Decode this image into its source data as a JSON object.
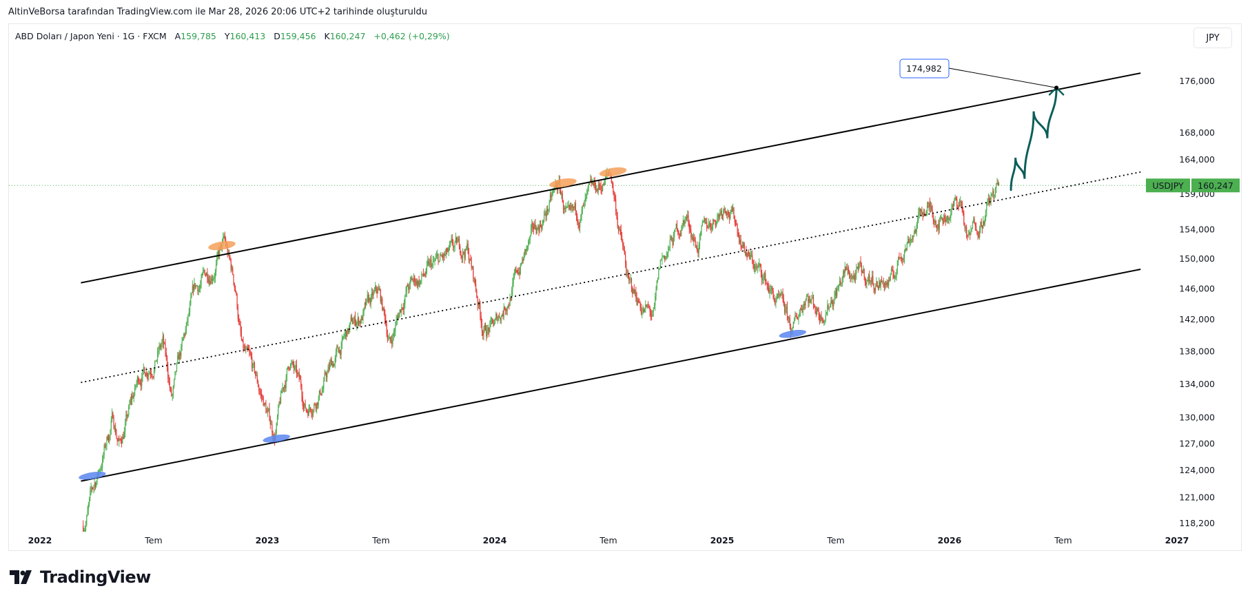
{
  "caption": "AltinVeBorsa tarafından TradingView.com ile Mar 28, 2026 20:06 UTC+2 tarihinde oluşturuldu",
  "legend": {
    "symbol": "ABD Doları / Japon Yeni · 1G · FXCM",
    "open_label": "A",
    "open": "159,785",
    "high_label": "Y",
    "high": "160,413",
    "low_label": "D",
    "low": "159,456",
    "close_label": "K",
    "close": "160,247",
    "change": "+0,462 (+0,29%)"
  },
  "currency_button": "JPY",
  "logo_text": "TradingView",
  "colors": {
    "up": "#4caf50",
    "down": "#e53935",
    "accent": "#4caf50",
    "arrow": "#0b5e5a",
    "top_marker": "#f5a05a",
    "bottom_marker": "#5b86f0"
  },
  "chart_data": {
    "type": "candlestick",
    "title": "USDJPY",
    "scale": "log",
    "ylim": [
      117.5,
      181
    ],
    "xlim": [
      2021.86,
      2027.1
    ],
    "last_price": {
      "symbol": "USDJPY",
      "value": 160.247,
      "label": "160,247"
    },
    "y_ticks": [
      {
        "value": 176,
        "label": "176,000"
      },
      {
        "value": 168,
        "label": "168,000"
      },
      {
        "value": 164,
        "label": "164,000"
      },
      {
        "value": 159,
        "label": "159,000"
      },
      {
        "value": 154,
        "label": "154,000"
      },
      {
        "value": 150,
        "label": "150,000"
      },
      {
        "value": 146,
        "label": "146,000"
      },
      {
        "value": 142,
        "label": "142,000"
      },
      {
        "value": 138,
        "label": "138,000"
      },
      {
        "value": 134,
        "label": "134,000"
      },
      {
        "value": 130,
        "label": "130,000"
      },
      {
        "value": 127,
        "label": "127,000"
      },
      {
        "value": 124,
        "label": "124,000"
      },
      {
        "value": 121,
        "label": "121,000"
      },
      {
        "value": 118.2,
        "label": "118,200"
      }
    ],
    "x_ticks": [
      {
        "t": 2022.0,
        "label": "2022",
        "year": true
      },
      {
        "t": 2022.5,
        "label": "Tem"
      },
      {
        "t": 2023.0,
        "label": "2023",
        "year": true
      },
      {
        "t": 2023.5,
        "label": "Tem"
      },
      {
        "t": 2024.0,
        "label": "2024",
        "year": true
      },
      {
        "t": 2024.5,
        "label": "Tem"
      },
      {
        "t": 2025.0,
        "label": "2025",
        "year": true
      },
      {
        "t": 2025.5,
        "label": "Tem"
      },
      {
        "t": 2026.0,
        "label": "2026",
        "year": true
      },
      {
        "t": 2026.5,
        "label": "Tem"
      },
      {
        "t": 2027.0,
        "label": "2027",
        "year": true
      }
    ],
    "price_path": [
      [
        2022.19,
        118
      ],
      [
        2022.26,
        124
      ],
      [
        2022.32,
        130
      ],
      [
        2022.35,
        127
      ],
      [
        2022.44,
        135
      ],
      [
        2022.54,
        139
      ],
      [
        2022.58,
        132
      ],
      [
        2022.68,
        145
      ],
      [
        2022.81,
        151.9
      ],
      [
        2022.86,
        146
      ],
      [
        2022.89,
        138
      ],
      [
        2022.98,
        132
      ],
      [
        2023.03,
        128
      ],
      [
        2023.1,
        137
      ],
      [
        2023.17,
        131
      ],
      [
        2023.24,
        134
      ],
      [
        2023.37,
        141
      ],
      [
        2023.49,
        145
      ],
      [
        2023.54,
        139
      ],
      [
        2023.61,
        146
      ],
      [
        2023.75,
        149
      ],
      [
        2023.88,
        151.5
      ],
      [
        2023.95,
        141
      ],
      [
        2024.0,
        141
      ],
      [
        2024.14,
        151
      ],
      [
        2024.28,
        160
      ],
      [
        2024.33,
        154
      ],
      [
        2024.51,
        161.9
      ],
      [
        2024.59,
        146
      ],
      [
        2024.7,
        142
      ],
      [
        2024.73,
        149
      ],
      [
        2024.84,
        156
      ],
      [
        2024.89,
        152
      ],
      [
        2025.02,
        158.5
      ],
      [
        2025.12,
        150
      ],
      [
        2025.19,
        147
      ],
      [
        2025.28,
        142
      ],
      [
        2025.31,
        140
      ],
      [
        2025.37,
        146
      ],
      [
        2025.43,
        143
      ],
      [
        2025.54,
        148
      ],
      [
        2025.68,
        147
      ],
      [
        2025.75,
        147
      ],
      [
        2025.8,
        152
      ],
      [
        2025.89,
        157
      ],
      [
        2025.96,
        156
      ],
      [
        2026.05,
        158
      ],
      [
        2026.08,
        152
      ],
      [
        2026.12,
        155
      ],
      [
        2026.22,
        160.2
      ]
    ],
    "channel": {
      "upper": [
        [
          2022.18,
          146.8
        ],
        [
          2026.84,
          177.3
        ]
      ],
      "lower": [
        [
          2022.18,
          122.8
        ],
        [
          2026.84,
          148.6
        ]
      ],
      "middle_dotted": [
        [
          2022.18,
          134.2
        ],
        [
          2026.84,
          162.2
        ]
      ]
    },
    "touch_markers": {
      "tops": [
        [
          2022.8,
          151.8
        ],
        [
          2024.3,
          160.6
        ],
        [
          2024.52,
          162.2
        ]
      ],
      "bottoms": [
        [
          2022.23,
          123.4
        ],
        [
          2023.04,
          127.6
        ],
        [
          2025.31,
          140.2
        ]
      ]
    },
    "projection": {
      "path": [
        [
          2026.27,
          159.6
        ],
        [
          2026.29,
          164.3
        ],
        [
          2026.33,
          161.2
        ],
        [
          2026.37,
          171.3
        ],
        [
          2026.43,
          167.2
        ],
        [
          2026.47,
          175.0
        ]
      ],
      "target_label": "174,982",
      "target": [
        2026.47,
        174.98
      ]
    }
  }
}
